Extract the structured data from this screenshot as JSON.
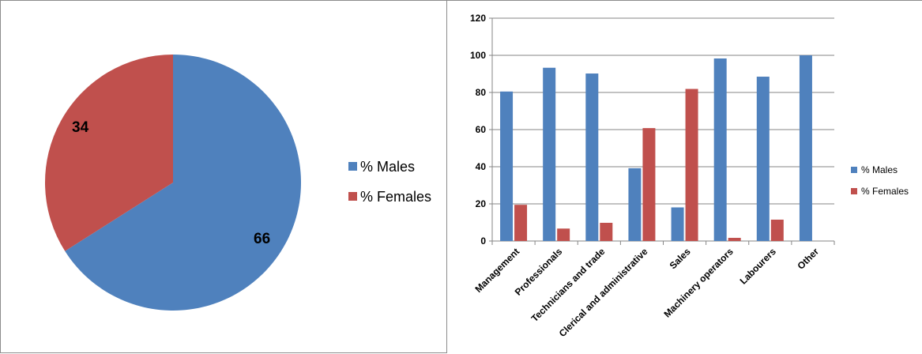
{
  "colors": {
    "males": "#4f81bd",
    "females": "#c0504d",
    "grid": "#868686",
    "border": "#8c8c8c"
  },
  "chart_data": [
    {
      "type": "pie",
      "categories": [
        "% Males",
        "% Females"
      ],
      "values": [
        66,
        34
      ],
      "colors": [
        "#4f81bd",
        "#c0504d"
      ],
      "data_labels": [
        "66",
        "34"
      ],
      "legend": [
        "% Males",
        "% Females"
      ],
      "legend_position": "right"
    },
    {
      "type": "bar",
      "categories": [
        "Management",
        "Professionals",
        "Technicians and trade",
        "Clerical and administrative",
        "Sales",
        "Machinery operators",
        "Labourers",
        "Other"
      ],
      "series": [
        {
          "name": "% Males",
          "values": [
            80.5,
            93.3,
            90.2,
            39.2,
            18.1,
            98.3,
            88.5,
            100
          ],
          "color": "#4f81bd"
        },
        {
          "name": "% Females",
          "values": [
            19.5,
            6.7,
            9.8,
            60.8,
            81.9,
            1.7,
            11.5,
            0
          ],
          "color": "#c0504d"
        }
      ],
      "ylim": [
        0,
        120
      ],
      "yticks": [
        "0",
        "20",
        "40",
        "60",
        "80",
        "100",
        "120"
      ],
      "grid": true,
      "legend_position": "right"
    }
  ]
}
